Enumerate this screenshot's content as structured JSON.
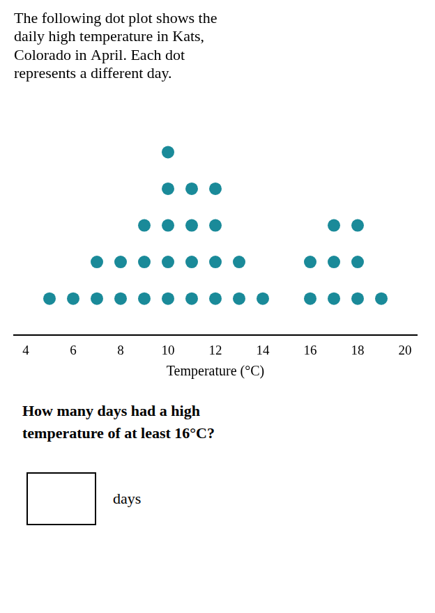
{
  "chart_data": {
    "type": "dot",
    "title": [
      "The following dot plot shows the",
      "daily high temperature in Kats,",
      "Colorado in April. Each dot",
      "represents a different day."
    ],
    "x": [
      5,
      6,
      7,
      8,
      9,
      10,
      11,
      12,
      13,
      14,
      16,
      17,
      18,
      19
    ],
    "values": [
      1,
      1,
      2,
      2,
      3,
      5,
      4,
      4,
      2,
      1,
      2,
      3,
      3,
      1
    ],
    "color": "#1a8a99",
    "xlabel": "Temperature (°C)",
    "xlim": [
      3.5,
      20.5
    ],
    "xticks": [
      4,
      6,
      8,
      10,
      12,
      14,
      16,
      18,
      20
    ],
    "grid": false,
    "tick_labels": "x",
    "annotations": [
      "How many days had a high\ntemperature of at least 16°C?",
      "days"
    ]
  }
}
